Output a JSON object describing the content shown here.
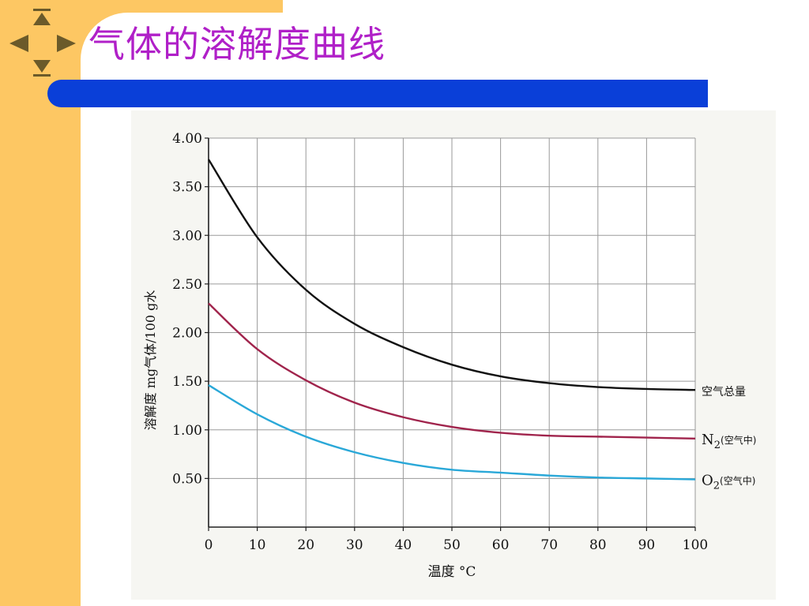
{
  "slide": {
    "title": "气体的溶解度曲线"
  },
  "colors": {
    "side_band": "#fdc763",
    "title": "#b020c8",
    "bar": "#0a3fd8",
    "nav_icon": "#6b5a2a"
  },
  "nav": {
    "icons": [
      "arrow-up-icon",
      "arrow-left-icon",
      "arrow-right-icon",
      "arrow-down-icon"
    ]
  },
  "chart_data": {
    "type": "line",
    "xlabel": "温度 °C",
    "ylabel": "溶解度 mg气体/100 g水",
    "xlim": [
      0,
      100
    ],
    "ylim": [
      0,
      4.0
    ],
    "xticks": [
      "0",
      "10",
      "20",
      "30",
      "40",
      "50",
      "60",
      "70",
      "80",
      "90",
      "100"
    ],
    "yticks": [
      "0.50",
      "1.00",
      "1.50",
      "2.00",
      "2.50",
      "3.00",
      "3.50",
      "4.00"
    ],
    "grid": true,
    "x": [
      0,
      10,
      20,
      30,
      40,
      50,
      60,
      70,
      80,
      90,
      100
    ],
    "series": [
      {
        "name": "空气总量",
        "color": "#111111",
        "values": [
          3.78,
          2.98,
          2.44,
          2.09,
          1.85,
          1.67,
          1.55,
          1.48,
          1.44,
          1.42,
          1.41
        ]
      },
      {
        "name": "N2(空气中)",
        "color": "#a0244c",
        "values": [
          2.3,
          1.83,
          1.51,
          1.28,
          1.13,
          1.03,
          0.97,
          0.94,
          0.93,
          0.92,
          0.91
        ]
      },
      {
        "name": "O2(空气中)",
        "color": "#2aa8d8",
        "values": [
          1.46,
          1.16,
          0.93,
          0.77,
          0.66,
          0.59,
          0.56,
          0.53,
          0.51,
          0.5,
          0.49
        ]
      }
    ]
  }
}
